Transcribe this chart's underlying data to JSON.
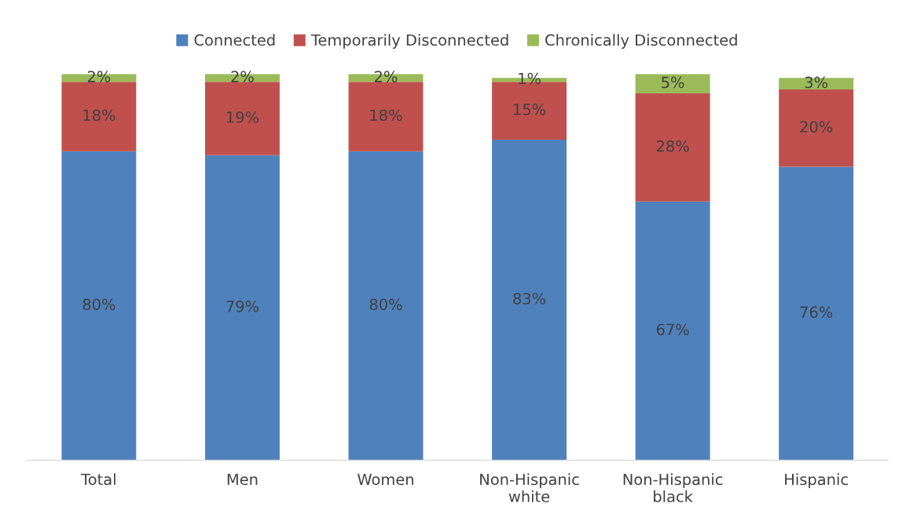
{
  "chart_data": {
    "type": "bar",
    "stacked": true,
    "legend": "top",
    "grid": false,
    "tick_labels": "x",
    "categories": [
      "Total",
      "Men",
      "Women",
      "Non-Hispanic\nwhite",
      "Non-Hispanic\nblack",
      "Hispanic"
    ],
    "series": [
      {
        "name": "Connected",
        "color": "#4f81bd",
        "values": [
          80,
          79,
          80,
          83,
          67,
          76
        ],
        "value_labels": [
          "80%",
          "79%",
          "80%",
          "83%",
          "67%",
          "76%"
        ]
      },
      {
        "name": "Temporarily Disconnected",
        "color": "#c0504d",
        "values": [
          18,
          19,
          18,
          15,
          28,
          20
        ],
        "value_labels": [
          "18%",
          "19%",
          "18%",
          "15%",
          "28%",
          "20%"
        ]
      },
      {
        "name": "Chronically Disconnected",
        "color": "#9bbb59",
        "values": [
          2,
          2,
          2,
          1,
          5,
          3
        ],
        "value_labels": [
          "2%",
          "2%",
          "2%",
          "1%",
          "5%",
          "3%"
        ]
      }
    ]
  }
}
